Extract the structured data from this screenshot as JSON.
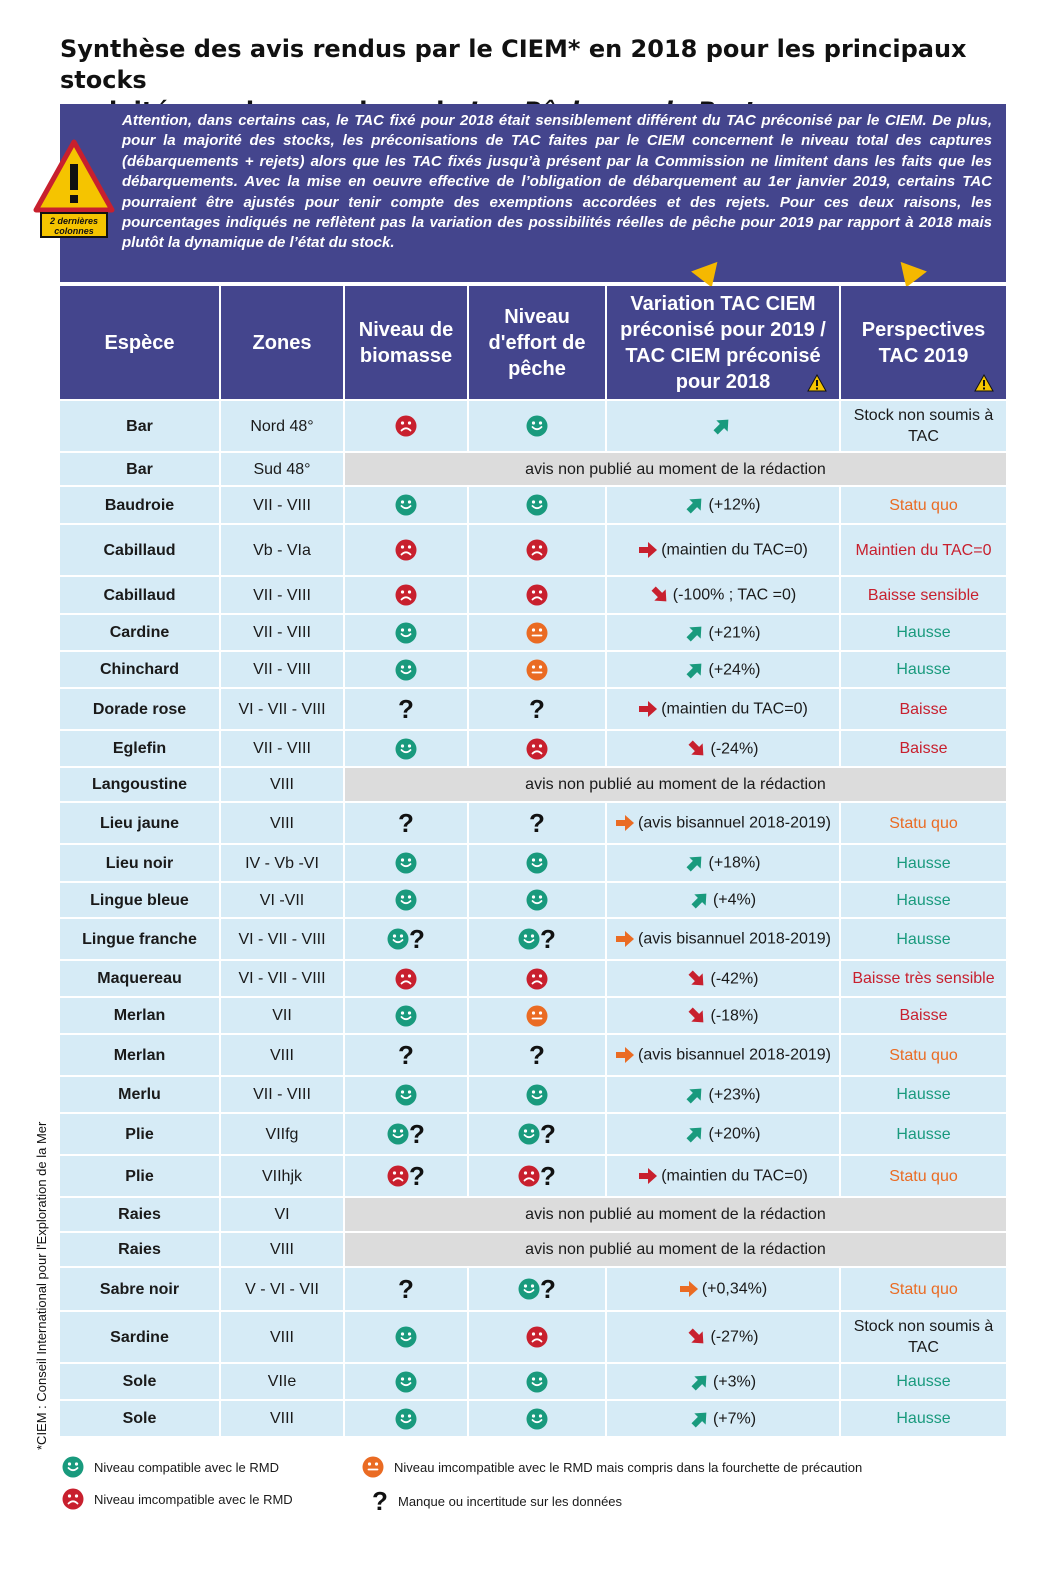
{
  "title": {
    "line1": "Synthèse des avis rendus par le CIEM* en 2018 pour les principaux stocks",
    "line2_prefix": "exploités par les membres de ",
    "line2_italic": "Les Pêcheurs de Bretagne"
  },
  "note": {
    "text": "Attention, dans certains cas, le TAC fixé pour 2018 était sensiblement différent du TAC préconisé par le CIEM. De plus, pour la majorité des stocks, les préconisations de TAC faites par le CIEM concernent le niveau total des captures (débarquements + rejets) alors que les TAC fixés jusqu’à présent par la Commission ne limitent dans les faits que les débarquements. Avec la mise en oeuvre effective de l’obligation de débarquement au 1er janvier 2019, certains TAC pourraient être ajustés pour tenir compte des exemptions accordées et des rejets. Pour ces deux raisons, les pourcentages indiqués ne reflètent pas la variation des possibilités réelles de pêche pour 2019 par rapport à 2018 mais plutôt la dynamique de l’état du stock.",
    "warning_label": "2 dernières colonnes"
  },
  "headers": {
    "espece": "Espèce",
    "zones": "Zones",
    "biomasse": "Niveau de biomasse",
    "effort": "Niveau d'effort de pêche",
    "variation": "Variation TAC CIEM préconisé pour 2019 / TAC CIEM préconisé pour 2018",
    "perspectives": "Perspectives TAC 2019"
  },
  "rows": [
    {
      "espece": "Bar",
      "zone": "Nord 48°",
      "biomasse": "red",
      "effort": "green",
      "arrow": "up-green",
      "variation": "",
      "perspective": "Stock non soumis à TAC",
      "pcolor": "black"
    },
    {
      "espece": "Bar",
      "zone": "Sud 48°",
      "grey": "avis non publié au moment de la rédaction"
    },
    {
      "espece": "Baudroie",
      "zone": "VII - VIII",
      "biomasse": "green",
      "effort": "green",
      "arrow": "up-green",
      "variation": "(+12%)",
      "perspective": "Statu quo",
      "pcolor": "orange"
    },
    {
      "espece": "Cabillaud",
      "zone": "Vb - VIa",
      "biomasse": "red",
      "effort": "red",
      "arrow": "right-red",
      "variation": "(maintien du TAC=0)",
      "perspective": "Maintien du TAC=0",
      "pcolor": "red"
    },
    {
      "espece": "Cabillaud",
      "zone": "VII - VIII",
      "biomasse": "red",
      "effort": "red",
      "arrow": "down-red",
      "variation": "(-100% ; TAC =0)",
      "perspective": "Baisse sensible",
      "pcolor": "red"
    },
    {
      "espece": "Cardine",
      "zone": "VII - VIII",
      "biomasse": "green",
      "effort": "orange",
      "arrow": "up-green",
      "variation": "(+21%)",
      "perspective": "Hausse",
      "pcolor": "green"
    },
    {
      "espece": "Chinchard",
      "zone": "VII - VIII",
      "biomasse": "green",
      "effort": "orange",
      "arrow": "up-green",
      "variation": "(+24%)",
      "perspective": "Hausse",
      "pcolor": "green"
    },
    {
      "espece": "Dorade rose",
      "zone": "VI - VII - VIII",
      "biomasse": "q",
      "effort": "q",
      "arrow": "right-red",
      "variation": "(maintien du TAC=0)",
      "perspective": "Baisse",
      "pcolor": "red"
    },
    {
      "espece": "Eglefin",
      "zone": "VII - VIII",
      "biomasse": "green",
      "effort": "red",
      "arrow": "down-red",
      "variation": "(-24%)",
      "perspective": "Baisse",
      "pcolor": "red"
    },
    {
      "espece": "Langoustine",
      "zone": "VIII",
      "grey": "avis non publié au moment de la rédaction"
    },
    {
      "espece": "Lieu jaune",
      "zone": "VIII",
      "biomasse": "q",
      "effort": "q",
      "arrow": "right-orange",
      "variation": "(avis bisannuel 2018-2019)",
      "perspective": "Statu quo",
      "pcolor": "orange"
    },
    {
      "espece": "Lieu noir",
      "zone": "IV - Vb -VI",
      "biomasse": "green",
      "effort": "green",
      "arrow": "up-green",
      "variation": "(+18%)",
      "perspective": "Hausse",
      "pcolor": "green"
    },
    {
      "espece": "Lingue bleue",
      "zone": "VI -VII",
      "biomasse": "green",
      "effort": "green",
      "arrow": "up-green",
      "variation": "(+4%)",
      "perspective": "Hausse",
      "pcolor": "green"
    },
    {
      "espece": "Lingue franche",
      "zone": "VI - VII - VIII",
      "biomasse": "green-q",
      "effort": "green-q",
      "arrow": "right-orange",
      "variation": "(avis bisannuel 2018-2019)",
      "perspective": "Hausse",
      "pcolor": "green"
    },
    {
      "espece": "Maquereau",
      "zone": "VI - VII - VIII",
      "biomasse": "red",
      "effort": "red",
      "arrow": "down-red",
      "variation": "(-42%)",
      "perspective": "Baisse très sensible",
      "pcolor": "red"
    },
    {
      "espece": "Merlan",
      "zone": "VII",
      "biomasse": "green",
      "effort": "orange",
      "arrow": "down-red",
      "variation": "(-18%)",
      "perspective": "Baisse",
      "pcolor": "red"
    },
    {
      "espece": "Merlan",
      "zone": "VIII",
      "biomasse": "q",
      "effort": "q",
      "arrow": "right-orange",
      "variation": "(avis bisannuel 2018-2019)",
      "perspective": "Statu quo",
      "pcolor": "orange"
    },
    {
      "espece": "Merlu",
      "zone": "VII - VIII",
      "biomasse": "green",
      "effort": "green",
      "arrow": "up-green",
      "variation": "(+23%)",
      "perspective": "Hausse",
      "pcolor": "green"
    },
    {
      "espece": "Plie",
      "zone": "VIIfg",
      "biomasse": "green-q",
      "effort": "green-q",
      "arrow": "up-green",
      "variation": "(+20%)",
      "perspective": "Hausse",
      "pcolor": "green"
    },
    {
      "espece": "Plie",
      "zone": "VIIhjk",
      "biomasse": "red-q",
      "effort": "red-q",
      "arrow": "right-red",
      "variation": "(maintien du TAC=0)",
      "perspective": "Statu quo",
      "pcolor": "orange"
    },
    {
      "espece": "Raies",
      "zone": "VI",
      "grey": "avis non publié au moment de la rédaction"
    },
    {
      "espece": "Raies",
      "zone": "VIII",
      "grey": "avis non publié au moment de la rédaction"
    },
    {
      "espece": "Sabre noir",
      "zone": "V - VI - VII",
      "biomasse": "q",
      "effort": "green-q",
      "arrow": "right-orange",
      "variation": "(+0,34%)",
      "perspective": "Statu quo",
      "pcolor": "orange"
    },
    {
      "espece": "Sardine",
      "zone": "VIII",
      "biomasse": "green",
      "effort": "red",
      "arrow": "down-red",
      "variation": "(-27%)",
      "perspective": "Stock non soumis à TAC",
      "pcolor": "black"
    },
    {
      "espece": "Sole",
      "zone": "VIIe",
      "biomasse": "green",
      "effort": "green",
      "arrow": "up-green",
      "variation": "(+3%)",
      "perspective": "Hausse",
      "pcolor": "green"
    },
    {
      "espece": "Sole",
      "zone": "VIII",
      "biomasse": "green",
      "effort": "green",
      "arrow": "up-green",
      "variation": "(+7%)",
      "perspective": "Hausse",
      "pcolor": "green"
    }
  ],
  "legend": {
    "green": "Niveau compatible avec le RMD",
    "orange": "Niveau imcompatible avec le RMD mais compris dans la fourchette de précaution",
    "red": "Niveau imcompatible avec le RMD",
    "q": "Manque ou incertitude sur les données"
  },
  "footnote": "*CIEM : Conseil International pour l'Exploration de la Mer",
  "colors": {
    "navy": "#44458d",
    "row_bg": "#d6ebf6",
    "grey_bg": "#dcdcdc",
    "green": "#199a7d",
    "red": "#c8202e",
    "orange": "#ea6b23",
    "warning": "#f5c400"
  }
}
